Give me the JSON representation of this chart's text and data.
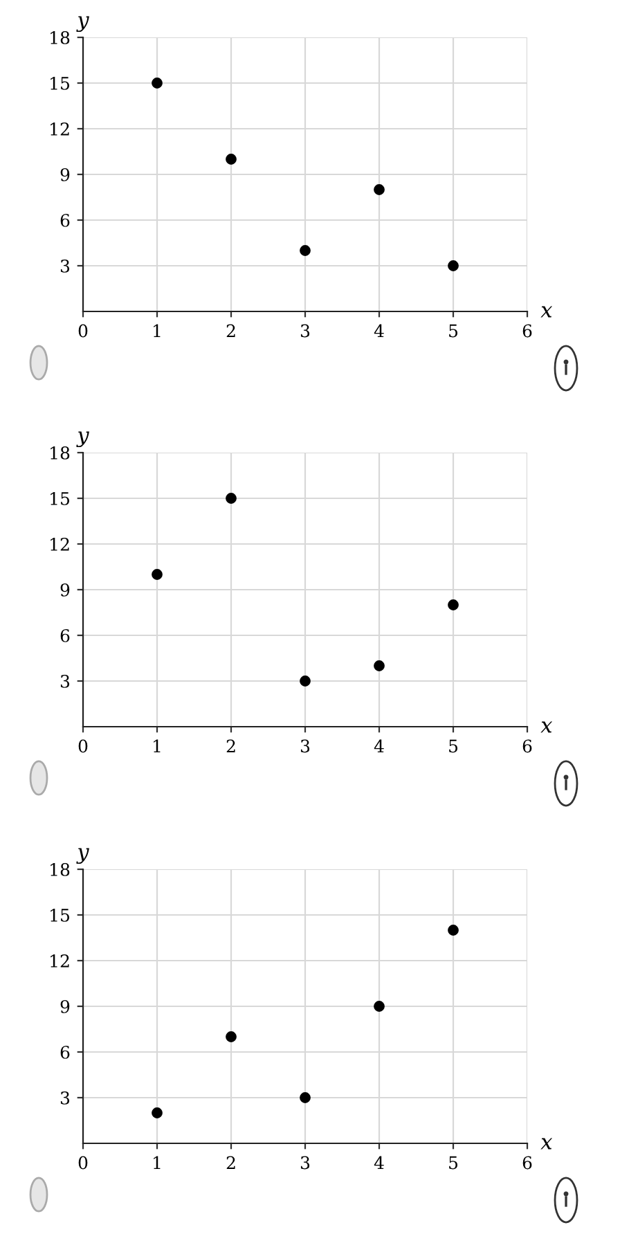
{
  "chart_data": [
    {
      "type": "scatter",
      "xlabel": "x",
      "ylabel": "y",
      "x": [
        1,
        2,
        3,
        4,
        5
      ],
      "series": [
        {
          "color": "#000000",
          "values": [
            15,
            10,
            4,
            8,
            3
          ]
        }
      ],
      "xlim": [
        0,
        6
      ],
      "ylim": [
        0,
        18
      ],
      "xticks": [
        0,
        1,
        2,
        3,
        4,
        5,
        6
      ],
      "yticks": [
        3,
        6,
        9,
        12,
        15,
        18
      ],
      "grid": true,
      "marker": "circle"
    },
    {
      "type": "scatter",
      "xlabel": "x",
      "ylabel": "y",
      "x": [
        1,
        2,
        3,
        4,
        5
      ],
      "series": [
        {
          "color": "#000000",
          "values": [
            10,
            15,
            3,
            4,
            8
          ]
        }
      ],
      "xlim": [
        0,
        6
      ],
      "ylim": [
        0,
        18
      ],
      "xticks": [
        0,
        1,
        2,
        3,
        4,
        5,
        6
      ],
      "yticks": [
        3,
        6,
        9,
        12,
        15,
        18
      ],
      "grid": true,
      "marker": "circle"
    },
    {
      "type": "scatter",
      "xlabel": "x",
      "ylabel": "y",
      "x": [
        1,
        2,
        3,
        4,
        5
      ],
      "series": [
        {
          "color": "#000000",
          "values": [
            2,
            7,
            3,
            9,
            14
          ]
        }
      ],
      "xlim": [
        0,
        6
      ],
      "ylim": [
        0,
        18
      ],
      "xticks": [
        0,
        1,
        2,
        3,
        4,
        5,
        6
      ],
      "yticks": [
        3,
        6,
        9,
        12,
        15,
        18
      ],
      "grid": true,
      "marker": "circle"
    }
  ]
}
